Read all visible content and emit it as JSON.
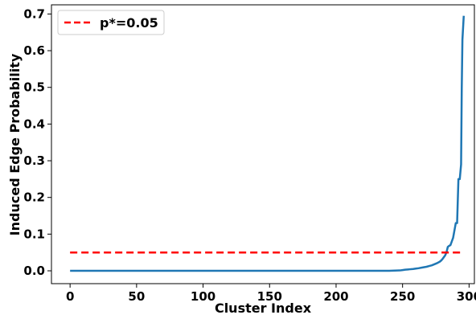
{
  "chart_data": {
    "type": "line",
    "xlabel": "Cluster Index",
    "ylabel": "Induced Edge Probability",
    "xlim": [
      -14,
      304
    ],
    "ylim": [
      -0.035,
      0.725
    ],
    "x_ticks": [
      0,
      50,
      100,
      150,
      200,
      250,
      300
    ],
    "y_ticks": [
      0.0,
      0.1,
      0.2,
      0.3,
      0.4,
      0.5,
      0.6,
      0.7
    ],
    "x_tick_labels": [
      "0",
      "50",
      "100",
      "150",
      "200",
      "250",
      "300"
    ],
    "y_tick_labels": [
      "0.0",
      "0.1",
      "0.2",
      "0.3",
      "0.4",
      "0.5",
      "0.6",
      "0.7"
    ],
    "grid": false,
    "legend_position": "top-left",
    "series": [
      {
        "name": "",
        "color": "#1f77b4",
        "style": "solid",
        "x": [
          0,
          50,
          100,
          150,
          200,
          240,
          248,
          250,
          252,
          255,
          258,
          260,
          262,
          265,
          268,
          270,
          272,
          274,
          276,
          278,
          279,
          280,
          281,
          282,
          283,
          284,
          285,
          286,
          287,
          288,
          288.5,
          289,
          290,
          291,
          292,
          293,
          294,
          294.5,
          295,
          296
        ],
        "y": [
          0,
          0,
          0,
          0,
          0,
          0,
          0.001,
          0.002,
          0.003,
          0.004,
          0.005,
          0.006,
          0.007,
          0.009,
          0.011,
          0.013,
          0.015,
          0.018,
          0.021,
          0.025,
          0.028,
          0.032,
          0.037,
          0.042,
          0.05,
          0.065,
          0.068,
          0.07,
          0.08,
          0.09,
          0.1,
          0.11,
          0.13,
          0.13,
          0.25,
          0.25,
          0.29,
          0.5,
          0.63,
          0.695
        ]
      },
      {
        "name": "p*=0.05",
        "color": "#ff0000",
        "style": "dashed",
        "x": [
          0,
          296
        ],
        "y": [
          0.05,
          0.05
        ]
      }
    ]
  }
}
